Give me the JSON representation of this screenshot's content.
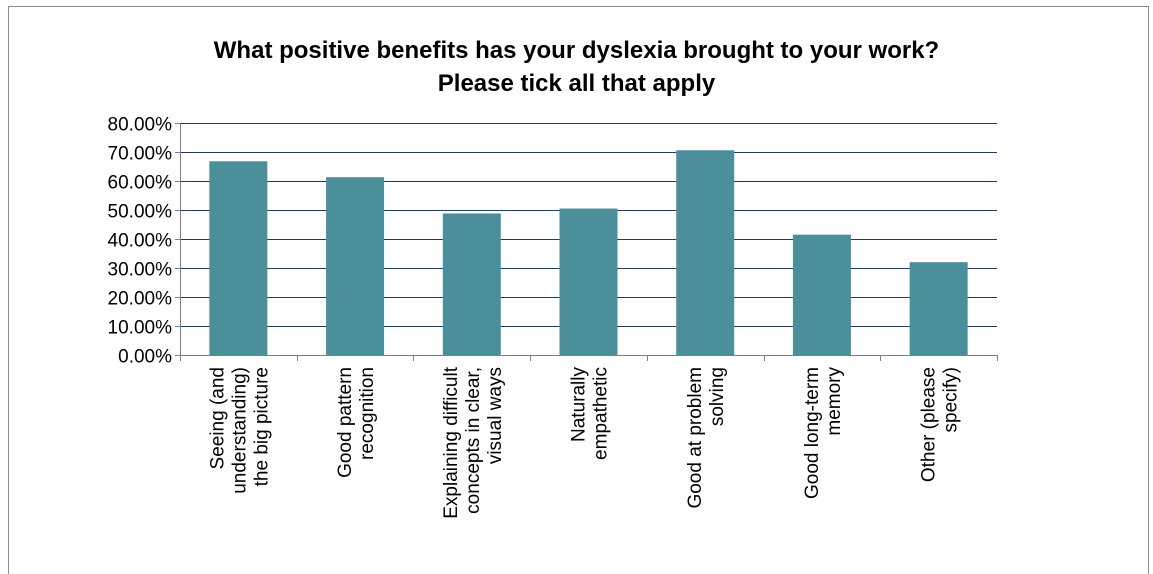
{
  "chart_data": {
    "type": "bar",
    "title_lines": [
      "What positive benefits has your dyslexia brought to your work?",
      "Please tick all that apply"
    ],
    "categories": [
      [
        "Seeing (and",
        "understanding)",
        "the big picture"
      ],
      [
        "Good pattern",
        "recognition"
      ],
      [
        "Explaining difficult",
        "concepts in clear,",
        "visual ways"
      ],
      [
        "Naturally",
        "empathetic"
      ],
      [
        "Good at problem",
        "solving"
      ],
      [
        "Good long-term",
        "memory"
      ],
      [
        "Other (please",
        "specify)"
      ]
    ],
    "values": [
      0.668,
      0.613,
      0.488,
      0.505,
      0.706,
      0.415,
      0.32
    ],
    "ylim": [
      0,
      0.8
    ],
    "ytick_step": 0.1,
    "ytick_labels": [
      "0.00%",
      "10.00%",
      "20.00%",
      "30.00%",
      "40.00%",
      "50.00%",
      "60.00%",
      "70.00%",
      "80.00%"
    ],
    "grid": true,
    "legend": "none",
    "xlabel": "",
    "ylabel": "",
    "colors": {
      "bar": "#4A8F99",
      "grid": "#1F3A5C",
      "axis": "#7F7F7F"
    }
  }
}
